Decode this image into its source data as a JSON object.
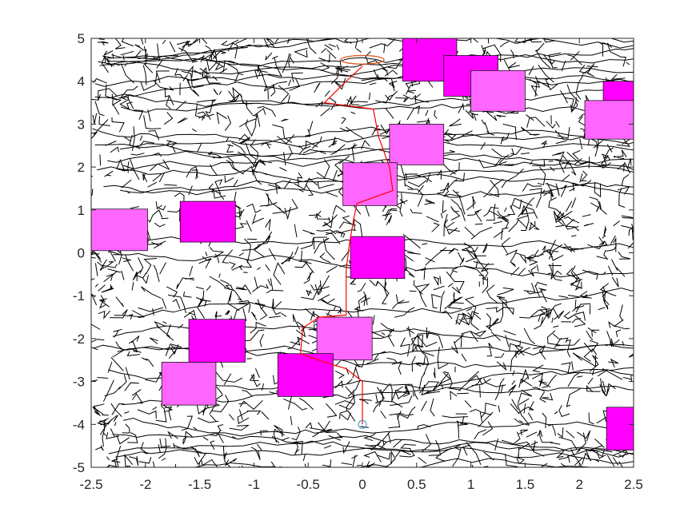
{
  "chart_data": {
    "type": "scatter",
    "title": "",
    "xlabel": "",
    "ylabel": "",
    "xlim": [
      -2.5,
      2.5
    ],
    "ylim": [
      -5,
      5
    ],
    "grid": false,
    "x_ticks": [
      "-2.5",
      "-2",
      "-1.5",
      "-1",
      "-0.5",
      "0",
      "0.5",
      "1",
      "1.5",
      "2",
      "2.5"
    ],
    "y_ticks": [
      "-5",
      "-4",
      "-3",
      "-2",
      "-1",
      "0",
      "1",
      "2",
      "3",
      "4",
      "5"
    ],
    "tree_color": "#000000",
    "path_color": "#ff0000",
    "start": {
      "x": 0,
      "y": -4,
      "color": "#4f9ec4"
    },
    "goal": {
      "x": 0,
      "y": 4.5,
      "rx": 0.2,
      "ry": 0.1,
      "color": "#d9541a"
    },
    "obstacle_colors": {
      "dark": "#ff00ff",
      "light": "#ff66ff"
    },
    "obstacles": [
      {
        "x0": 0.37,
        "x1": 0.87,
        "y0": 4.0,
        "y1": 5.0,
        "shade": "dark"
      },
      {
        "x0": 0.75,
        "x1": 1.25,
        "y0": 3.65,
        "y1": 4.6,
        "shade": "dark"
      },
      {
        "x0": 1.0,
        "x1": 1.5,
        "y0": 3.3,
        "y1": 4.25,
        "shade": "light"
      },
      {
        "x0": 2.22,
        "x1": 2.5,
        "y0": 3.15,
        "y1": 4.0,
        "shade": "dark"
      },
      {
        "x0": 2.05,
        "x1": 2.5,
        "y0": 2.65,
        "y1": 3.55,
        "shade": "light"
      },
      {
        "x0": 0.25,
        "x1": 0.75,
        "y0": 2.05,
        "y1": 3.0,
        "shade": "light"
      },
      {
        "x0": -0.18,
        "x1": 0.32,
        "y0": 1.1,
        "y1": 2.1,
        "shade": "light"
      },
      {
        "x0": -2.5,
        "x1": -1.98,
        "y0": 0.05,
        "y1": 1.02,
        "shade": "light"
      },
      {
        "x0": -1.68,
        "x1": -1.17,
        "y0": 0.25,
        "y1": 1.2,
        "shade": "dark"
      },
      {
        "x0": -0.11,
        "x1": 0.39,
        "y0": -0.6,
        "y1": 0.38,
        "shade": "dark"
      },
      {
        "x0": -1.6,
        "x1": -1.08,
        "y0": -2.55,
        "y1": -1.55,
        "shade": "dark"
      },
      {
        "x0": -0.42,
        "x1": 0.09,
        "y0": -2.5,
        "y1": -1.5,
        "shade": "light"
      },
      {
        "x0": -1.85,
        "x1": -1.35,
        "y0": -3.55,
        "y1": -2.55,
        "shade": "light"
      },
      {
        "x0": -0.78,
        "x1": -0.27,
        "y0": -3.35,
        "y1": -2.35,
        "shade": "dark"
      },
      {
        "x0": 2.25,
        "x1": 2.5,
        "y0": -4.6,
        "y1": -3.6,
        "shade": "dark"
      }
    ],
    "path": [
      [
        0,
        -4
      ],
      [
        0,
        -3
      ],
      [
        -0.15,
        -2.7
      ],
      [
        -0.35,
        -2.55
      ],
      [
        -0.57,
        -2.35
      ],
      [
        -0.55,
        -1.75
      ],
      [
        -0.4,
        -1.5
      ],
      [
        -0.15,
        -1.45
      ],
      [
        -0.15,
        -1.0
      ],
      [
        -0.15,
        -0.4
      ],
      [
        -0.12,
        0.2
      ],
      [
        -0.08,
        0.8
      ],
      [
        -0.05,
        1.15
      ],
      [
        0.28,
        1.45
      ],
      [
        0.25,
        2.0
      ],
      [
        0.15,
        2.7
      ],
      [
        0.1,
        3.35
      ],
      [
        -0.35,
        3.5
      ],
      [
        -0.15,
        4.0
      ],
      [
        0,
        4.35
      ]
    ]
  }
}
